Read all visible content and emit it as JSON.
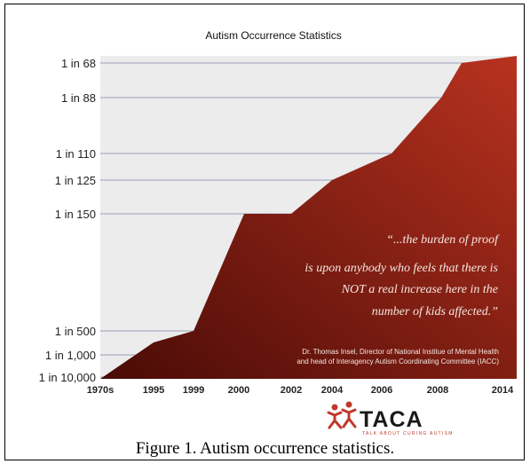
{
  "chart_data": {
    "type": "area",
    "title": "Autism Occurrence Statistics",
    "x": [
      "1970s",
      "1995",
      "1999",
      "2000",
      "2002",
      "2004",
      "2006",
      "2008",
      "2014"
    ],
    "y_ticks": [
      "1 in 68",
      "1 in 88",
      "1 in 110",
      "1 in 125",
      "1 in 150",
      "1 in 500",
      "1 in 1,000",
      "1 in 10,000"
    ],
    "series": [
      {
        "values": [
          "1 in 10,000",
          "1 in 2,500",
          "1 in 500",
          "1 in 150",
          "1 in 150",
          "1 in 125",
          "1 in 110",
          "1 in 88",
          "1 in 68"
        ]
      }
    ],
    "grid": true,
    "fill_color_dark": "#4a0b07",
    "fill_color_light": "#b8321f",
    "plot_bg_color": "#ececec"
  },
  "quote": {
    "lines": [
      "“...the burden of proof",
      "is upon anybody who feels that there is",
      "NOT a real increase here in the",
      "number of kids affected.”"
    ],
    "attribution_lines": [
      "Dr. Thomas Insel, Director of National Institue of Mental Health",
      "and head of Interagency Autism Coordinating Committee (IACC)"
    ]
  },
  "logo": {
    "name": "TACA",
    "tagline": "TALK ABOUT CURING AUTISM",
    "icon": "two-figures-icon"
  },
  "caption": "Figure 1. Autism occurrence statistics."
}
